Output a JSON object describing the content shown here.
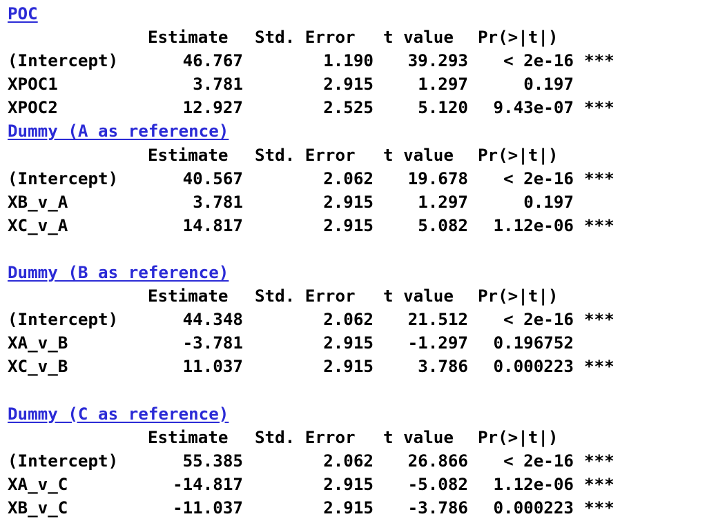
{
  "headers": {
    "estimate": "Estimate",
    "std_error": "Std. Error",
    "t_value": "t value",
    "p_value": "Pr(>|t|)"
  },
  "sections": [
    {
      "title": "POC",
      "rows": [
        {
          "name": "(Intercept)",
          "estimate": "46.767",
          "se": "1.190",
          "t": "39.293",
          "p": "< 2e-16",
          "sig": "***"
        },
        {
          "name": "XPOC1",
          "estimate": "3.781",
          "se": "2.915",
          "t": "1.297",
          "p": "0.197",
          "sig": ""
        },
        {
          "name": "XPOC2",
          "estimate": "12.927",
          "se": "2.525",
          "t": "5.120",
          "p": "9.43e-07",
          "sig": "***"
        }
      ]
    },
    {
      "title": "Dummy (A as reference)",
      "rows": [
        {
          "name": "(Intercept)",
          "estimate": "40.567",
          "se": "2.062",
          "t": "19.678",
          "p": "< 2e-16",
          "sig": "***"
        },
        {
          "name": "XB_v_A",
          "estimate": "3.781",
          "se": "2.915",
          "t": "1.297",
          "p": "0.197",
          "sig": ""
        },
        {
          "name": "XC_v_A",
          "estimate": "14.817",
          "se": "2.915",
          "t": "5.082",
          "p": "1.12e-06",
          "sig": "***"
        }
      ]
    },
    {
      "title": "Dummy (B as reference)",
      "rows": [
        {
          "name": "(Intercept)",
          "estimate": "44.348",
          "se": "2.062",
          "t": "21.512",
          "p": "< 2e-16",
          "sig": "***"
        },
        {
          "name": "XA_v_B",
          "estimate": "-3.781",
          "se": "2.915",
          "t": "-1.297",
          "p": "0.196752",
          "sig": ""
        },
        {
          "name": "XC_v_B",
          "estimate": "11.037",
          "se": "2.915",
          "t": "3.786",
          "p": "0.000223",
          "sig": "***"
        }
      ]
    },
    {
      "title": "Dummy (C as reference)",
      "rows": [
        {
          "name": "(Intercept)",
          "estimate": "55.385",
          "se": "2.062",
          "t": "26.866",
          "p": "< 2e-16",
          "sig": "***"
        },
        {
          "name": "XA_v_C",
          "estimate": "-14.817",
          "se": "2.915",
          "t": "-5.082",
          "p": "1.12e-06",
          "sig": "***"
        },
        {
          "name": "XB_v_C",
          "estimate": "-11.037",
          "se": "2.915",
          "t": "-3.786",
          "p": "0.000223",
          "sig": "***"
        }
      ]
    }
  ]
}
